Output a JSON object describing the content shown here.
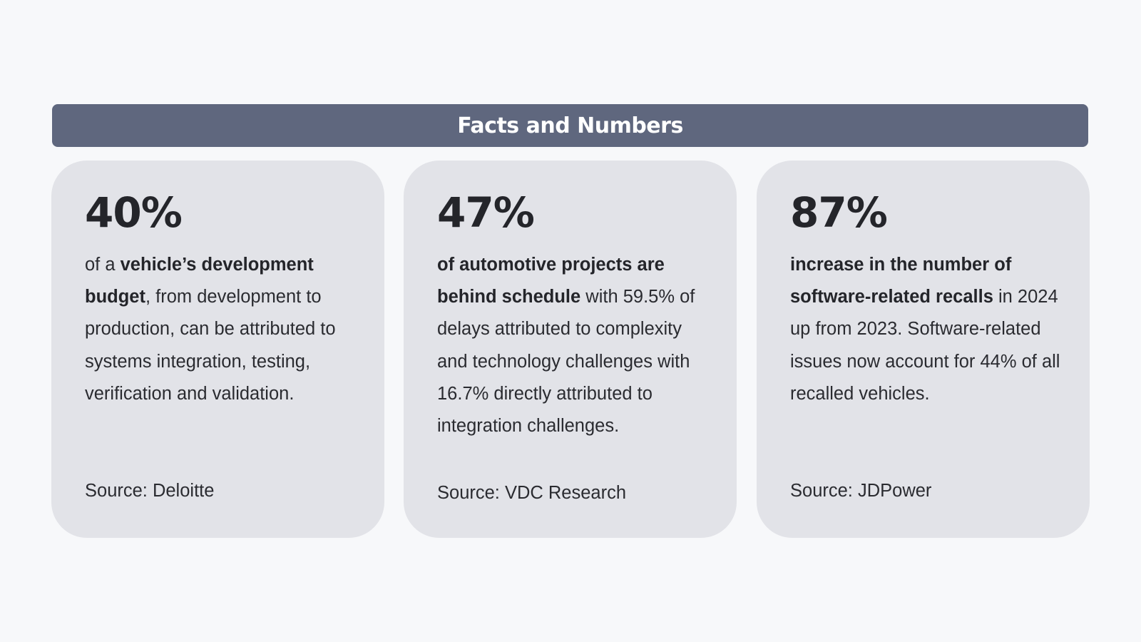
{
  "header": {
    "title": "Facts and Numbers"
  },
  "cards": [
    {
      "stat": "40%",
      "lead": "of a ",
      "bold": "vehicle’s development budget",
      "rest": ", from development to production, can be attributed to systems integration, testing, verification and validation.",
      "source": "Source: Deloitte"
    },
    {
      "stat": "47%",
      "lead": "",
      "bold": "of automotive projects are behind schedule",
      "rest": " with 59.5% of delays attributed to complexity and technology challenges with 16.7% directly attributed to integration challenges.",
      "source": "Source: VDC Research"
    },
    {
      "stat": "87%",
      "lead": "",
      "bold": "increase in the number of software-related recalls",
      "rest": " in 2024 up from 2023. Software-related issues now account for 44% of all recalled vehicles.",
      "source": "Source: JDPower"
    }
  ],
  "colors": {
    "background": "#f7f8fa",
    "banner": "#5f677e",
    "card": "#e2e3e8",
    "text": "#2a2b30"
  }
}
